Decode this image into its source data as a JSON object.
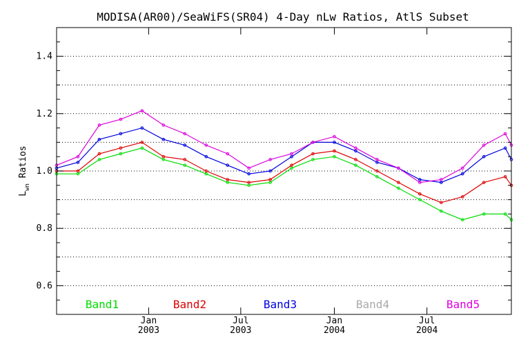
{
  "chart_data": {
    "type": "line",
    "title": "MODISA(AR00)/SeaWiFS(SR04) 4-Day nLw Ratios, AtlS Subset",
    "ylabel": "Lwn Ratios",
    "ylabel_main": "L",
    "ylabel_sub": "wn",
    "ylabel_rest": " Ratios",
    "xlabel": "",
    "ylim": [
      0.5,
      1.5
    ],
    "y_ticks": [
      0.6,
      0.8,
      1.0,
      1.2,
      1.4
    ],
    "y_tick_labels": [
      "0.6",
      "0.8",
      "1.0",
      "1.2",
      "1.4"
    ],
    "xlim": [
      "2002-07-04",
      "2004-12-14"
    ],
    "x_ticks": [
      {
        "date": "2003-01-01",
        "month": "Jan",
        "year": "2003"
      },
      {
        "date": "2003-07-01",
        "month": "Jul",
        "year": "2003"
      },
      {
        "date": "2004-01-01",
        "month": "Jan",
        "year": "2004"
      },
      {
        "date": "2004-07-01",
        "month": "Jul",
        "year": "2004"
      }
    ],
    "grid": "horizontal dotted",
    "legend_position": "bottom",
    "series": [
      {
        "name": "Band1",
        "color": "#00dd00",
        "points": [
          [
            "2002-07-04",
            0.99
          ],
          [
            "2002-08-15",
            0.99
          ],
          [
            "2002-09-26",
            1.04
          ],
          [
            "2002-11-07",
            1.06
          ],
          [
            "2002-12-19",
            1.08
          ],
          [
            "2003-01-30",
            1.04
          ],
          [
            "2003-03-13",
            1.02
          ],
          [
            "2003-04-24",
            0.99
          ],
          [
            "2003-06-05",
            0.96
          ],
          [
            "2003-07-17",
            0.95
          ],
          [
            "2003-08-28",
            0.96
          ],
          [
            "2003-10-09",
            1.01
          ],
          [
            "2003-11-20",
            1.04
          ],
          [
            "2004-01-01",
            1.05
          ],
          [
            "2004-02-12",
            1.02
          ],
          [
            "2004-03-25",
            0.98
          ],
          [
            "2004-05-06",
            0.94
          ],
          [
            "2004-06-17",
            0.9
          ],
          [
            "2004-07-29",
            0.86
          ],
          [
            "2004-09-09",
            0.83
          ],
          [
            "2004-10-21",
            0.85
          ],
          [
            "2004-12-02",
            0.85
          ],
          [
            "2004-12-14",
            0.83
          ]
        ]
      },
      {
        "name": "Band2",
        "color": "#dd0000",
        "points": [
          [
            "2002-07-04",
            1.0
          ],
          [
            "2002-08-15",
            1.0
          ],
          [
            "2002-09-26",
            1.06
          ],
          [
            "2002-11-07",
            1.08
          ],
          [
            "2002-12-19",
            1.1
          ],
          [
            "2003-01-30",
            1.05
          ],
          [
            "2003-03-13",
            1.04
          ],
          [
            "2003-04-24",
            1.0
          ],
          [
            "2003-06-05",
            0.97
          ],
          [
            "2003-07-17",
            0.96
          ],
          [
            "2003-08-28",
            0.97
          ],
          [
            "2003-10-09",
            1.02
          ],
          [
            "2003-11-20",
            1.06
          ],
          [
            "2004-01-01",
            1.07
          ],
          [
            "2004-02-12",
            1.04
          ],
          [
            "2004-03-25",
            1.0
          ],
          [
            "2004-05-06",
            0.96
          ],
          [
            "2004-06-17",
            0.92
          ],
          [
            "2004-07-29",
            0.89
          ],
          [
            "2004-09-09",
            0.91
          ],
          [
            "2004-10-21",
            0.96
          ],
          [
            "2004-12-02",
            0.98
          ],
          [
            "2004-12-14",
            0.95
          ]
        ]
      },
      {
        "name": "Band3",
        "color": "#0000dd",
        "points": [
          [
            "2002-07-04",
            1.01
          ],
          [
            "2002-08-15",
            1.03
          ],
          [
            "2002-09-26",
            1.11
          ],
          [
            "2002-11-07",
            1.13
          ],
          [
            "2002-12-19",
            1.15
          ],
          [
            "2003-01-30",
            1.11
          ],
          [
            "2003-03-13",
            1.09
          ],
          [
            "2003-04-24",
            1.05
          ],
          [
            "2003-06-05",
            1.02
          ],
          [
            "2003-07-17",
            0.99
          ],
          [
            "2003-08-28",
            1.0
          ],
          [
            "2003-10-09",
            1.05
          ],
          [
            "2003-11-20",
            1.1
          ],
          [
            "2004-01-01",
            1.1
          ],
          [
            "2004-02-12",
            1.07
          ],
          [
            "2004-03-25",
            1.03
          ],
          [
            "2004-05-06",
            1.01
          ],
          [
            "2004-06-17",
            0.97
          ],
          [
            "2004-07-29",
            0.96
          ],
          [
            "2004-09-09",
            0.99
          ],
          [
            "2004-10-21",
            1.05
          ],
          [
            "2004-12-02",
            1.08
          ],
          [
            "2004-12-14",
            1.04
          ]
        ]
      },
      {
        "name": "Band4",
        "color": "#aaaaaa",
        "points": []
      },
      {
        "name": "Band5",
        "color": "#dd00dd",
        "points": [
          [
            "2002-07-04",
            1.02
          ],
          [
            "2002-08-15",
            1.05
          ],
          [
            "2002-09-26",
            1.16
          ],
          [
            "2002-11-07",
            1.18
          ],
          [
            "2002-12-19",
            1.21
          ],
          [
            "2003-01-30",
            1.16
          ],
          [
            "2003-03-13",
            1.13
          ],
          [
            "2003-04-24",
            1.09
          ],
          [
            "2003-06-05",
            1.06
          ],
          [
            "2003-07-17",
            1.01
          ],
          [
            "2003-08-28",
            1.04
          ],
          [
            "2003-10-09",
            1.06
          ],
          [
            "2003-11-20",
            1.1
          ],
          [
            "2004-01-01",
            1.12
          ],
          [
            "2004-02-12",
            1.08
          ],
          [
            "2004-03-25",
            1.04
          ],
          [
            "2004-05-06",
            1.01
          ],
          [
            "2004-06-17",
            0.96
          ],
          [
            "2004-07-29",
            0.97
          ],
          [
            "2004-09-09",
            1.01
          ],
          [
            "2004-10-21",
            1.09
          ],
          [
            "2004-12-02",
            1.13
          ],
          [
            "2004-12-14",
            1.09
          ]
        ]
      }
    ]
  }
}
